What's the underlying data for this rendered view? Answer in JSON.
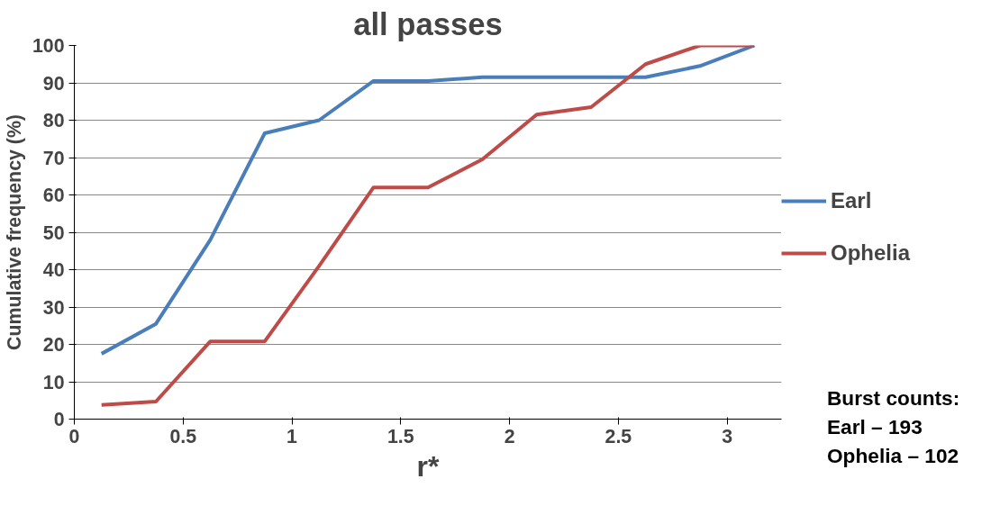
{
  "chart_data": {
    "type": "line",
    "title": "all passes",
    "xlabel": "r*",
    "ylabel": "Cumulative frequency (%)",
    "x": [
      0.125,
      0.375,
      0.625,
      0.875,
      1.125,
      1.375,
      1.625,
      1.875,
      2.125,
      2.375,
      2.625,
      2.875,
      3.125
    ],
    "series": [
      {
        "name": "Earl",
        "color": "#4a7ebb",
        "values": [
          17.5,
          25.5,
          48,
          76.5,
          80,
          90.5,
          90.5,
          91.5,
          91.5,
          91.5,
          91.5,
          94.5,
          100
        ]
      },
      {
        "name": "Ophelia",
        "color": "#be4b48",
        "values": [
          3.8,
          4.7,
          20.8,
          20.8,
          41,
          62,
          62,
          69.5,
          81.5,
          83.5,
          95,
          100,
          100
        ]
      }
    ],
    "xlim": [
      0,
      3.25
    ],
    "xticks": [
      0,
      0.5,
      1,
      1.5,
      2,
      2.5,
      3
    ],
    "ylim": [
      0,
      100
    ],
    "yticks": [
      0,
      10,
      20,
      30,
      40,
      50,
      60,
      70,
      80,
      90,
      100
    ],
    "grid": "y",
    "legend": "right",
    "marker": "none",
    "line_style": "solid",
    "annotations": [
      "Burst counts:",
      "Earl – 193",
      "Ophelia – 102"
    ]
  }
}
